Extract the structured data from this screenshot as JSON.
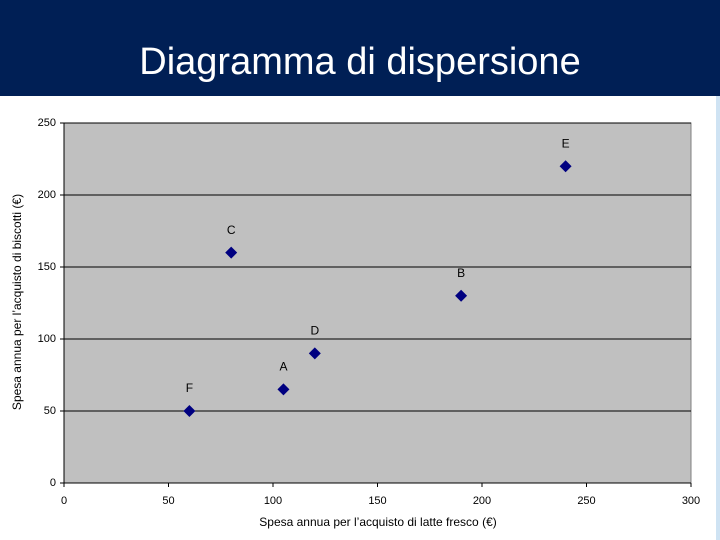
{
  "chart_data": {
    "type": "scatter",
    "title": "Diagramma di dispersione",
    "x_label": "Spesa annua per l’acquisto di latte fresco (€)",
    "y_label": "Spesa annua per l’acquisto di biscotti (€)",
    "point_labels": [
      "F",
      "A",
      "D",
      "C",
      "B",
      "E"
    ],
    "x": [
      60,
      105,
      120,
      80,
      190,
      240
    ],
    "values": [
      50,
      65,
      90,
      160,
      130,
      220
    ],
    "color": "#000080",
    "xlim": [
      0,
      300
    ],
    "xticks": [
      0,
      50,
      100,
      150,
      200,
      250,
      300
    ],
    "ylim": [
      0,
      250
    ],
    "yticks": [
      0,
      50,
      100,
      150,
      200,
      250
    ],
    "grid": true
  }
}
